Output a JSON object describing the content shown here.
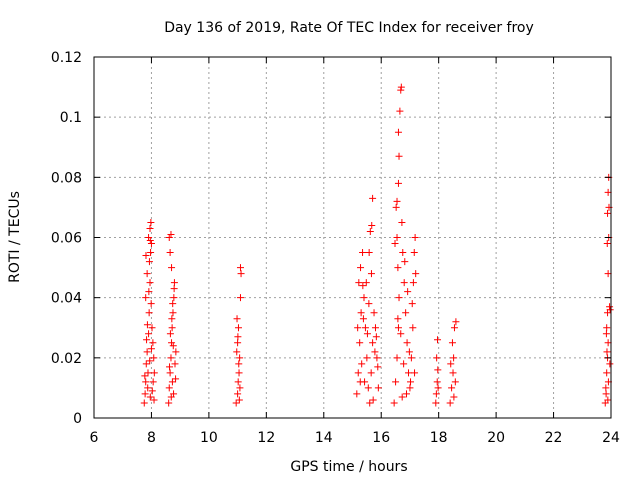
{
  "chart_data": {
    "type": "scatter",
    "title": "Day 136 of 2019, Rate Of TEC Index for receiver froy",
    "xlabel": "GPS time / hours",
    "ylabel": "ROTI / TECUs",
    "xlim": [
      6,
      24
    ],
    "ylim": [
      0,
      0.12
    ],
    "xticks": [
      6,
      8,
      10,
      12,
      14,
      16,
      18,
      20,
      22,
      24
    ],
    "xtick_labels": [
      "6",
      "8",
      "10",
      "12",
      "14",
      "16",
      "18",
      "20",
      "22",
      "24"
    ],
    "yticks": [
      0,
      0.02,
      0.04,
      0.06,
      0.08,
      0.1,
      0.12
    ],
    "ytick_labels": [
      "0",
      "0.02",
      "0.04",
      "0.06",
      "0.08",
      "0.1",
      "0.12"
    ],
    "grid": true,
    "marker": "+",
    "color": "#ff0000",
    "series": [
      {
        "name": "ROTI",
        "points": [
          [
            7.75,
            0.005
          ],
          [
            7.78,
            0.008
          ],
          [
            7.8,
            0.012
          ],
          [
            7.82,
            0.018
          ],
          [
            7.85,
            0.022
          ],
          [
            7.88,
            0.015
          ],
          [
            7.9,
            0.028
          ],
          [
            7.92,
            0.035
          ],
          [
            7.95,
            0.045
          ],
          [
            7.97,
            0.055
          ],
          [
            7.9,
            0.06
          ],
          [
            7.95,
            0.063
          ],
          [
            7.98,
            0.065
          ],
          [
            8.0,
            0.058
          ],
          [
            7.93,
            0.052
          ],
          [
            7.85,
            0.048
          ],
          [
            7.8,
            0.04
          ],
          [
            8.02,
            0.03
          ],
          [
            8.05,
            0.025
          ],
          [
            8.08,
            0.02
          ],
          [
            8.1,
            0.015
          ],
          [
            7.87,
            0.01
          ],
          [
            7.96,
            0.007
          ],
          [
            8.03,
            0.009
          ],
          [
            7.77,
            0.014
          ],
          [
            7.83,
            0.026
          ],
          [
            7.99,
            0.038
          ],
          [
            7.91,
            0.042
          ],
          [
            8.06,
            0.012
          ],
          [
            7.94,
            0.019
          ],
          [
            8.09,
            0.006
          ],
          [
            7.86,
            0.031
          ],
          [
            7.81,
            0.054
          ],
          [
            7.96,
            0.059
          ],
          [
            8.0,
            0.023
          ],
          [
            8.6,
            0.005
          ],
          [
            8.62,
            0.01
          ],
          [
            8.65,
            0.015
          ],
          [
            8.68,
            0.02
          ],
          [
            8.7,
            0.025
          ],
          [
            8.72,
            0.03
          ],
          [
            8.75,
            0.035
          ],
          [
            8.78,
            0.04
          ],
          [
            8.8,
            0.045
          ],
          [
            8.7,
            0.05
          ],
          [
            8.65,
            0.055
          ],
          [
            8.62,
            0.06
          ],
          [
            8.68,
            0.061
          ],
          [
            8.73,
            0.012
          ],
          [
            8.77,
            0.008
          ],
          [
            8.82,
            0.018
          ],
          [
            8.85,
            0.022
          ],
          [
            8.66,
            0.028
          ],
          [
            8.71,
            0.033
          ],
          [
            8.79,
            0.043
          ],
          [
            8.63,
            0.017
          ],
          [
            8.69,
            0.007
          ],
          [
            8.76,
            0.024
          ],
          [
            8.84,
            0.013
          ],
          [
            8.74,
            0.038
          ],
          [
            10.95,
            0.005
          ],
          [
            11.0,
            0.008
          ],
          [
            11.02,
            0.012
          ],
          [
            11.05,
            0.015
          ],
          [
            11.07,
            0.02
          ],
          [
            11.0,
            0.025
          ],
          [
            11.03,
            0.03
          ],
          [
            10.98,
            0.033
          ],
          [
            11.1,
            0.04
          ],
          [
            11.12,
            0.048
          ],
          [
            11.1,
            0.05
          ],
          [
            11.08,
            0.01
          ],
          [
            11.04,
            0.018
          ],
          [
            10.97,
            0.022
          ],
          [
            11.06,
            0.006
          ],
          [
            11.01,
            0.027
          ],
          [
            15.15,
            0.008
          ],
          [
            15.2,
            0.015
          ],
          [
            15.25,
            0.025
          ],
          [
            15.3,
            0.035
          ],
          [
            15.22,
            0.045
          ],
          [
            15.28,
            0.05
          ],
          [
            15.35,
            0.055
          ],
          [
            15.4,
            0.04
          ],
          [
            15.45,
            0.03
          ],
          [
            15.5,
            0.02
          ],
          [
            15.55,
            0.01
          ],
          [
            15.6,
            0.005
          ],
          [
            15.65,
            0.015
          ],
          [
            15.7,
            0.025
          ],
          [
            15.75,
            0.035
          ],
          [
            15.8,
            0.03
          ],
          [
            15.85,
            0.02
          ],
          [
            15.9,
            0.01
          ],
          [
            15.62,
            0.062
          ],
          [
            15.67,
            0.064
          ],
          [
            15.7,
            0.073
          ],
          [
            15.58,
            0.055
          ],
          [
            15.48,
            0.045
          ],
          [
            15.38,
            0.033
          ],
          [
            15.32,
            0.018
          ],
          [
            15.42,
            0.012
          ],
          [
            15.52,
            0.028
          ],
          [
            15.72,
            0.006
          ],
          [
            15.78,
            0.022
          ],
          [
            15.88,
            0.017
          ],
          [
            15.18,
            0.03
          ],
          [
            15.27,
            0.012
          ],
          [
            15.57,
            0.038
          ],
          [
            15.83,
            0.027
          ],
          [
            15.36,
            0.044
          ],
          [
            15.66,
            0.048
          ],
          [
            16.45,
            0.005
          ],
          [
            16.5,
            0.012
          ],
          [
            16.55,
            0.02
          ],
          [
            16.6,
            0.03
          ],
          [
            16.62,
            0.04
          ],
          [
            16.58,
            0.05
          ],
          [
            16.55,
            0.06
          ],
          [
            16.52,
            0.07
          ],
          [
            16.55,
            0.072
          ],
          [
            16.6,
            0.078
          ],
          [
            16.62,
            0.087
          ],
          [
            16.6,
            0.095
          ],
          [
            16.65,
            0.102
          ],
          [
            16.68,
            0.109
          ],
          [
            16.7,
            0.11
          ],
          [
            16.72,
            0.065
          ],
          [
            16.75,
            0.055
          ],
          [
            16.8,
            0.045
          ],
          [
            16.85,
            0.035
          ],
          [
            16.9,
            0.025
          ],
          [
            16.95,
            0.015
          ],
          [
            17.0,
            0.01
          ],
          [
            17.05,
            0.02
          ],
          [
            17.1,
            0.03
          ],
          [
            17.12,
            0.045
          ],
          [
            17.15,
            0.055
          ],
          [
            17.18,
            0.06
          ],
          [
            17.2,
            0.048
          ],
          [
            17.08,
            0.038
          ],
          [
            16.88,
            0.008
          ],
          [
            16.78,
            0.018
          ],
          [
            16.68,
            0.028
          ],
          [
            16.98,
            0.022
          ],
          [
            17.02,
            0.012
          ],
          [
            16.92,
            0.042
          ],
          [
            16.82,
            0.052
          ],
          [
            16.48,
            0.058
          ],
          [
            17.16,
            0.015
          ],
          [
            16.73,
            0.007
          ],
          [
            16.58,
            0.033
          ],
          [
            17.9,
            0.005
          ],
          [
            17.92,
            0.008
          ],
          [
            17.95,
            0.012
          ],
          [
            17.97,
            0.016
          ],
          [
            17.93,
            0.02
          ],
          [
            17.96,
            0.026
          ],
          [
            17.98,
            0.01
          ],
          [
            18.4,
            0.005
          ],
          [
            18.45,
            0.01
          ],
          [
            18.5,
            0.015
          ],
          [
            18.52,
            0.02
          ],
          [
            18.48,
            0.025
          ],
          [
            18.55,
            0.03
          ],
          [
            18.6,
            0.032
          ],
          [
            18.42,
            0.018
          ],
          [
            18.58,
            0.012
          ],
          [
            18.53,
            0.007
          ],
          [
            23.8,
            0.005
          ],
          [
            23.82,
            0.01
          ],
          [
            23.85,
            0.015
          ],
          [
            23.88,
            0.02
          ],
          [
            23.9,
            0.025
          ],
          [
            23.85,
            0.03
          ],
          [
            23.88,
            0.035
          ],
          [
            23.9,
            0.048
          ],
          [
            23.87,
            0.058
          ],
          [
            23.92,
            0.06
          ],
          [
            23.88,
            0.068
          ],
          [
            23.93,
            0.07
          ],
          [
            23.9,
            0.075
          ],
          [
            23.92,
            0.08
          ],
          [
            23.95,
            0.037
          ],
          [
            23.97,
            0.036
          ],
          [
            23.83,
            0.008
          ],
          [
            23.86,
            0.022
          ],
          [
            23.91,
            0.012
          ],
          [
            23.84,
            0.028
          ],
          [
            23.96,
            0.018
          ],
          [
            23.89,
            0.006
          ]
        ]
      }
    ]
  }
}
